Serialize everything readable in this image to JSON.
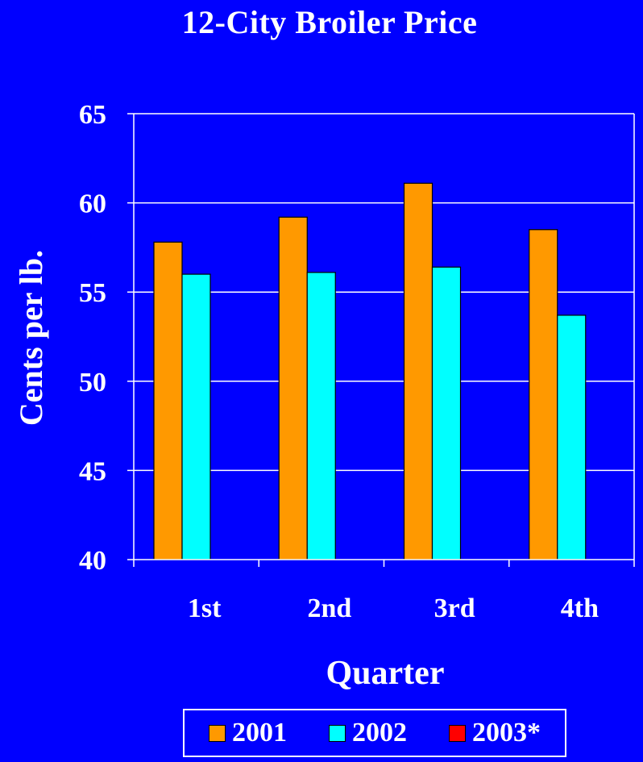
{
  "chart_data": {
    "type": "bar",
    "title": "12-City Broiler Price",
    "xlabel": "Quarter",
    "ylabel": "Cents per lb.",
    "categories": [
      "1st",
      "2nd",
      "3rd",
      "4th"
    ],
    "ylim": [
      40,
      65
    ],
    "yticks": [
      40,
      45,
      50,
      55,
      60,
      65
    ],
    "grid": true,
    "legend_position": "bottom",
    "series": [
      {
        "name": "2001",
        "color": "#ff9900",
        "values": [
          57.8,
          59.2,
          61.1,
          58.5
        ]
      },
      {
        "name": "2002",
        "color": "#00ffff",
        "values": [
          56.0,
          56.1,
          56.4,
          53.7
        ]
      },
      {
        "name": "2003*",
        "color": "#ff0000",
        "values": [
          null,
          null,
          null,
          null
        ]
      }
    ]
  }
}
